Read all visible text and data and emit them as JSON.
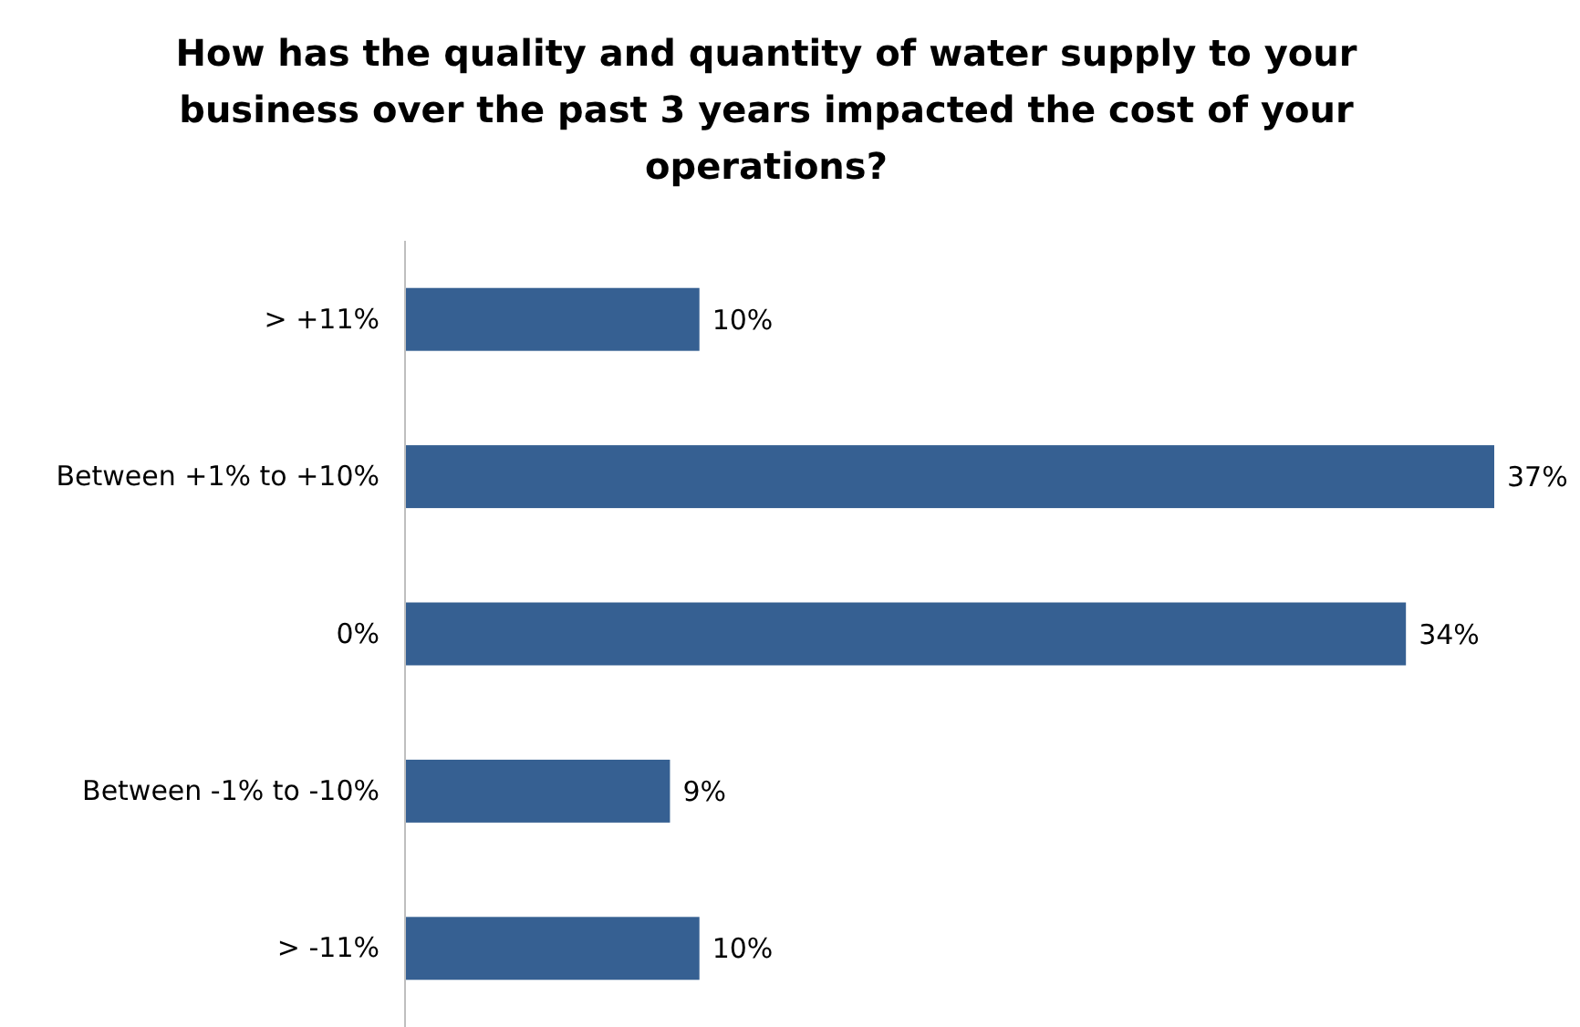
{
  "chart_data": {
    "type": "bar",
    "orientation": "horizontal",
    "title": "How has the quality and quantity of water supply to your business over the past 3 years impacted the cost of your operations?",
    "categories": [
      "> +11%",
      "Between +1% to +10%",
      "0%",
      "Between -1% to -10%",
      "> -11%"
    ],
    "values": [
      10,
      37,
      34,
      9,
      10
    ],
    "value_labels": [
      "10%",
      "37%",
      "34%",
      "9%",
      "10%"
    ],
    "color": "#366092"
  }
}
